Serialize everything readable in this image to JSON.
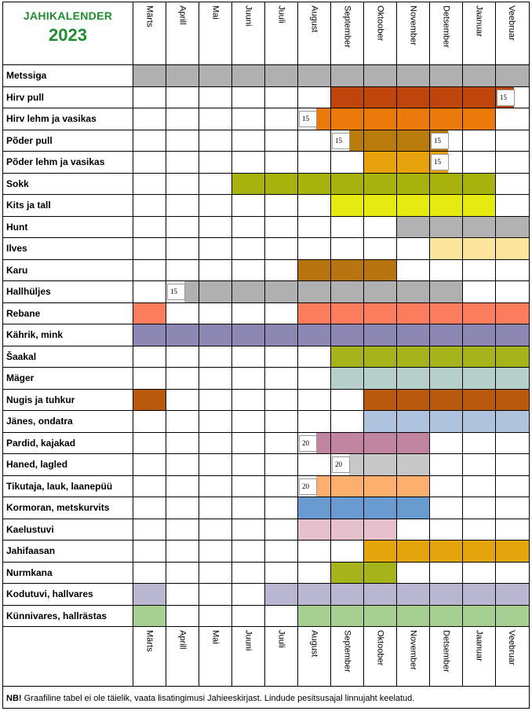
{
  "title": {
    "line1": "JAHIKALENDER",
    "line2": "2023"
  },
  "months": [
    "Märts",
    "Aprill",
    "Mai",
    "Juuni",
    "Juuli",
    "August",
    "September",
    "Oktoober",
    "November",
    "Detsember",
    "Jaanuar",
    "Veebruar"
  ],
  "colors": {
    "gray": "#b0b0b0",
    "rust": "#c0450c",
    "orange": "#ec7a0b",
    "brownlt": "#b97c0c",
    "amber": "#e8a20e",
    "olive": "#a8b20c",
    "yellow": "#e6ea10",
    "lightgray": "#b2b2b2",
    "paleyellow": "#fde59e",
    "darkbrown": "#b77410",
    "salmon": "#fc7c5e",
    "purple": "#8c88b3",
    "olive2": "#a6b31a",
    "teal": "#b6cfca",
    "burnt": "#b8590e",
    "lightblue": "#afc3df",
    "mauve": "#c185a1",
    "silver": "#c8c8c8",
    "peach": "#fdb06e",
    "blue": "#6a9bd0",
    "pink": "#e6c0cc",
    "gold": "#e4a40c",
    "lavender": "#b8b6d0",
    "green": "#a6cf92"
  },
  "rows": [
    {
      "label": "Metssiga",
      "segments": [
        {
          "from": 0,
          "to": 11,
          "color": "gray"
        }
      ],
      "markers": []
    },
    {
      "label": "Hirv pull",
      "segments": [
        {
          "from": 6,
          "to": 10,
          "color": "rust"
        },
        {
          "from": 11,
          "to": 11,
          "color": "rust",
          "partial": 0.55
        }
      ],
      "markers": [
        {
          "month": 11,
          "value": "15"
        }
      ]
    },
    {
      "label": "Hirv lehm ja vasikas",
      "segments": [
        {
          "from": 5,
          "to": 10,
          "color": "orange",
          "startPartial": 0.55
        }
      ],
      "markers": [
        {
          "month": 5,
          "value": "15"
        }
      ]
    },
    {
      "label": "Põder pull",
      "segments": [
        {
          "from": 6,
          "to": 9,
          "color": "brownlt",
          "startPartial": 0.55,
          "endPartial": 0.55
        }
      ],
      "markers": [
        {
          "month": 6,
          "value": "15"
        },
        {
          "month": 9,
          "value": "15"
        }
      ]
    },
    {
      "label": "Põder lehm ja vasikas",
      "segments": [
        {
          "from": 7,
          "to": 9,
          "color": "amber",
          "endPartial": 0.55
        }
      ],
      "markers": [
        {
          "month": 9,
          "value": "15"
        }
      ]
    },
    {
      "label": "Sokk",
      "segments": [
        {
          "from": 3,
          "to": 10,
          "color": "olive"
        }
      ],
      "markers": []
    },
    {
      "label": "Kits ja tall",
      "segments": [
        {
          "from": 6,
          "to": 10,
          "color": "yellow"
        }
      ],
      "markers": []
    },
    {
      "label": "Hunt",
      "segments": [
        {
          "from": 8,
          "to": 11,
          "color": "lightgray"
        }
      ],
      "markers": []
    },
    {
      "label": "Ilves",
      "segments": [
        {
          "from": 9,
          "to": 11,
          "color": "paleyellow"
        }
      ],
      "markers": []
    },
    {
      "label": "Karu",
      "segments": [
        {
          "from": 5,
          "to": 7,
          "color": "darkbrown"
        }
      ],
      "markers": []
    },
    {
      "label": "Hallhüljes",
      "segments": [
        {
          "from": 1,
          "to": 9,
          "color": "gray",
          "startPartial": 0.55
        }
      ],
      "markers": [
        {
          "month": 1,
          "value": "15"
        }
      ]
    },
    {
      "label": "Rebane",
      "segments": [
        {
          "from": 0,
          "to": 0,
          "color": "salmon"
        },
        {
          "from": 5,
          "to": 11,
          "color": "salmon"
        }
      ],
      "markers": []
    },
    {
      "label": "Kährik, mink",
      "segments": [
        {
          "from": 0,
          "to": 11,
          "color": "purple"
        }
      ],
      "markers": []
    },
    {
      "label": "Šaakal",
      "segments": [
        {
          "from": 6,
          "to": 11,
          "color": "olive2"
        }
      ],
      "markers": []
    },
    {
      "label": "Mäger",
      "segments": [
        {
          "from": 6,
          "to": 11,
          "color": "teal"
        }
      ],
      "markers": []
    },
    {
      "label": "Nugis ja tuhkur",
      "segments": [
        {
          "from": 0,
          "to": 0,
          "color": "burnt"
        },
        {
          "from": 7,
          "to": 11,
          "color": "burnt"
        }
      ],
      "markers": []
    },
    {
      "label": "Jänes, ondatra",
      "segments": [
        {
          "from": 7,
          "to": 11,
          "color": "lightblue"
        }
      ],
      "markers": []
    },
    {
      "label": "Pardid, kajakad",
      "segments": [
        {
          "from": 5,
          "to": 8,
          "color": "mauve",
          "startPartial": 0.55
        }
      ],
      "markers": [
        {
          "month": 5,
          "value": "20"
        }
      ]
    },
    {
      "label": "Haned, lagled",
      "segments": [
        {
          "from": 6,
          "to": 8,
          "color": "silver",
          "startPartial": 0.55
        }
      ],
      "markers": [
        {
          "month": 6,
          "value": "20"
        }
      ]
    },
    {
      "label": "Tikutaja, lauk, laanepüü",
      "segments": [
        {
          "from": 5,
          "to": 8,
          "color": "peach",
          "startPartial": 0.55
        }
      ],
      "markers": [
        {
          "month": 5,
          "value": "20"
        }
      ]
    },
    {
      "label": "Kormoran, metskurvits",
      "segments": [
        {
          "from": 5,
          "to": 8,
          "color": "blue"
        }
      ],
      "markers": []
    },
    {
      "label": "Kaelustuvi",
      "segments": [
        {
          "from": 5,
          "to": 7,
          "color": "pink"
        }
      ],
      "markers": []
    },
    {
      "label": "Jahifaasan",
      "segments": [
        {
          "from": 7,
          "to": 11,
          "color": "gold"
        }
      ],
      "markers": []
    },
    {
      "label": "Nurmkana",
      "segments": [
        {
          "from": 6,
          "to": 7,
          "color": "olive2"
        }
      ],
      "markers": []
    },
    {
      "label": "Kodutuvi, hallvares",
      "segments": [
        {
          "from": 0,
          "to": 0,
          "color": "lavender"
        },
        {
          "from": 4,
          "to": 11,
          "color": "lavender"
        }
      ],
      "markers": []
    },
    {
      "label": "Künnivares, hallrästas",
      "segments": [
        {
          "from": 0,
          "to": 0,
          "color": "green"
        },
        {
          "from": 5,
          "to": 11,
          "color": "green"
        }
      ],
      "markers": []
    }
  ],
  "note": {
    "bold": "NB!",
    "text": " Graafiline tabel ei ole täielik, vaata lisatingimusi Jahieeskirjast. Lindude pesitsusajal linnujaht keelatud."
  }
}
